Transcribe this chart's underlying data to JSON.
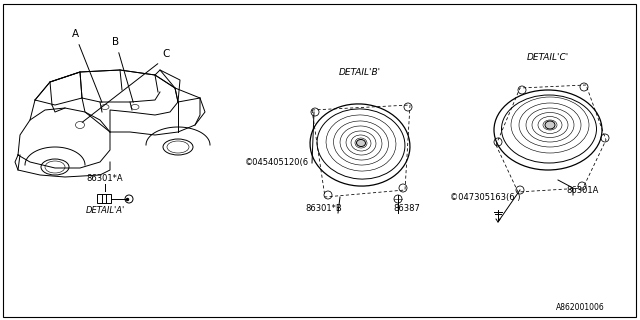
{
  "background_color": "#ffffff",
  "part_numbers": {
    "detail_a_label": "86301*A",
    "detail_a_caption": "DETAIL'A'",
    "detail_b_label1": "86301*B",
    "detail_b_label2": "86387",
    "detail_b_screw": "©045405120(6",
    "detail_b_caption": "DETAIL'B'",
    "detail_c_label": "86301A",
    "detail_c_screw": "©047305163(6 )",
    "detail_c_caption": "DETAIL'C'",
    "callout_a": "A",
    "callout_b": "B",
    "callout_c": "C"
  },
  "footer": "A862001006",
  "lc": "#000000",
  "lw": 0.7,
  "fs": 5.5
}
